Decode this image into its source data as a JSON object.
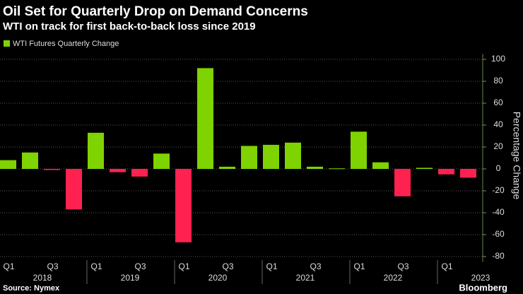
{
  "chart_data": {
    "type": "bar",
    "title": "Oil Set for Quarterly Drop on Demand Concerns",
    "subtitle": "WTI on track for first back-to-back loss since 2019",
    "legend": "WTI Futures Quarterly Change",
    "y_axis_label": "Percentage Change",
    "source": "Source: Nymex",
    "brand": "Bloomberg",
    "categories": [
      "Q1",
      null,
      "Q3",
      null,
      "Q1",
      null,
      "Q3",
      null,
      "Q1",
      null,
      "Q3",
      null,
      "Q1",
      null,
      "Q3",
      null,
      "Q1",
      null,
      "Q3",
      null,
      "Q1",
      null
    ],
    "years": [
      "2018",
      "2019",
      "2020",
      "2021",
      "2022",
      "2023"
    ],
    "values": [
      8,
      15,
      -1,
      -37,
      33,
      -3,
      -7,
      14,
      -67,
      92,
      2,
      21,
      22,
      24,
      2,
      0.5,
      34,
      6,
      -25,
      1,
      -5,
      -8
    ],
    "positive_color": "#7fd300",
    "negative_color": "#ff2150",
    "ylim": [
      -85,
      105
    ],
    "yticks": [
      -80,
      -60,
      -40,
      -20,
      0,
      20,
      40,
      60,
      80,
      100
    ],
    "grid": true
  }
}
